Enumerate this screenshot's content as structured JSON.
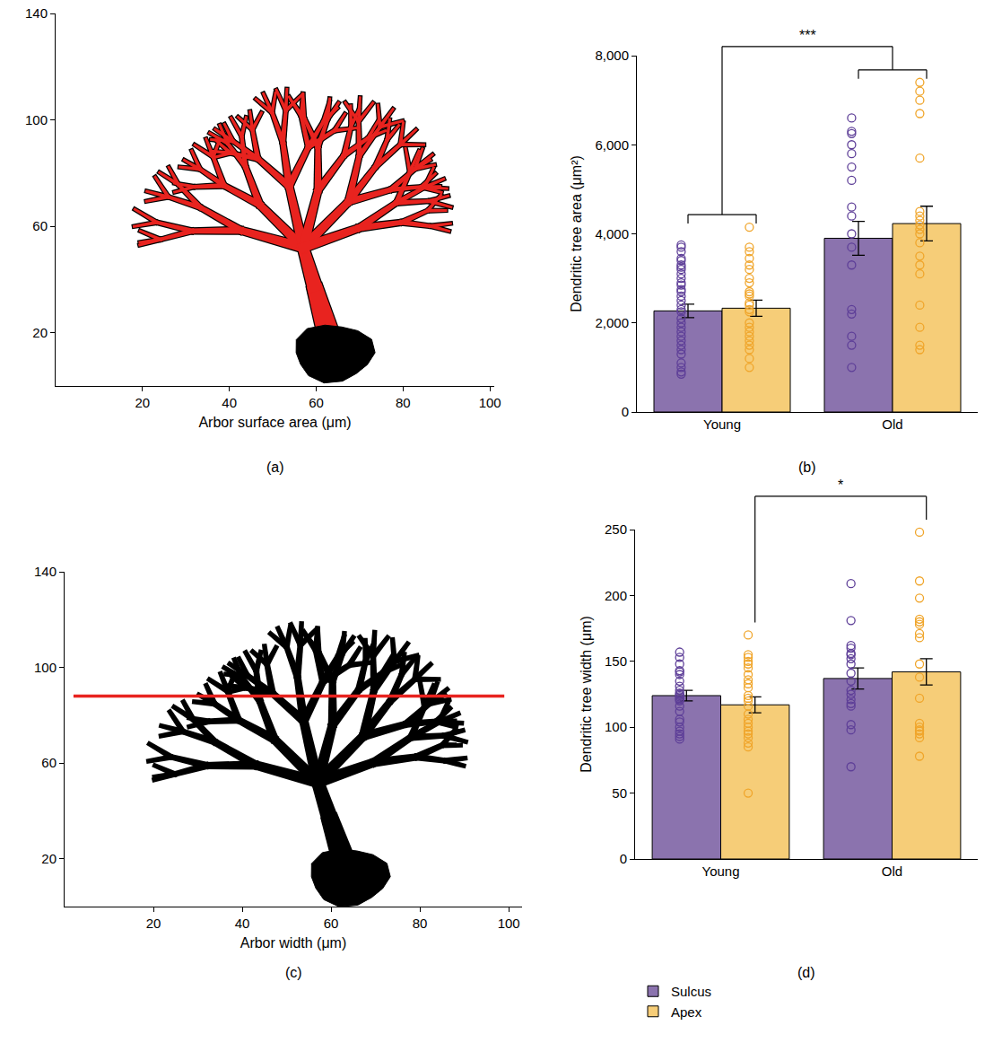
{
  "chart_data": [
    {
      "type": "illustration",
      "caption": "(a)",
      "x_label": "Arbor surface area (μm)",
      "xlim": [
        0,
        101
      ],
      "xticks": [
        20,
        40,
        60,
        80,
        100
      ],
      "ylim": [
        0,
        140
      ],
      "yticks": [
        20,
        60,
        100,
        140
      ],
      "color": "#e8231f"
    },
    {
      "type": "bar",
      "caption": "(b)",
      "y_label": "Dendritic tree area (μm²)",
      "categories": [
        "Young",
        "Old"
      ],
      "series": [
        {
          "name": "Sulcus",
          "color": "#8b73ae",
          "values": [
            2270,
            3900
          ],
          "errors": [
            150,
            380
          ],
          "points": [
            [
              3750,
              3700,
              3600,
              3450,
              3400,
              3300,
              3250,
              3200,
              3100,
              3000,
              2900,
              2850,
              2750,
              2700,
              2600,
              2500,
              2400,
              2300,
              2250,
              2100,
              2000,
              1900,
              1800,
              1700,
              1600,
              1500,
              1400,
              1300,
              1100,
              1000,
              900,
              850
            ],
            [
              6600,
              6300,
              6250,
              6000,
              5800,
              5500,
              5200,
              4600,
              4400,
              4000,
              3700,
              3300,
              2300,
              2200,
              1700,
              1500,
              1000
            ]
          ]
        },
        {
          "name": "Apex",
          "color": "#f6cd78",
          "values": [
            2330,
            4230
          ],
          "errors": [
            180,
            390
          ],
          "points": [
            [
              4150,
              3700,
              3600,
              3450,
              3300,
              3200,
              3000,
              2900,
              2700,
              2650,
              2600,
              2450,
              2400,
              2300,
              2250,
              2000,
              1900,
              1800,
              1700,
              1600,
              1500,
              1400,
              1200,
              1000
            ],
            [
              7400,
              7200,
              7000,
              6700,
              5700,
              4500,
              4400,
              4300,
              4200,
              4100,
              4000,
              3800,
              3500,
              3300,
              3100,
              2400,
              1900,
              1500,
              1400
            ]
          ]
        }
      ],
      "ylim": [
        0,
        8000
      ],
      "yticks": [
        0,
        {
          "value": 2000,
          "label": "2,000"
        },
        {
          "value": 4000,
          "label": "4,000"
        },
        {
          "value": 6000,
          "label": "6,000"
        },
        {
          "value": 8000,
          "label": "8,000"
        }
      ],
      "significance": [
        {
          "from": {
            "category": "Young"
          },
          "to": {
            "category": "Old"
          },
          "label": "***"
        }
      ]
    },
    {
      "type": "illustration",
      "caption": "(c)",
      "x_label": "Arbor width (μm)",
      "xlim": [
        0,
        103
      ],
      "xticks": [
        20,
        40,
        60,
        80,
        100
      ],
      "ylim": [
        0,
        140
      ],
      "yticks": [
        20,
        60,
        100,
        140
      ],
      "color": "#000000",
      "measure_line": {
        "y": 88,
        "x": [
          2,
          99
        ],
        "color": "#e8231f"
      }
    },
    {
      "type": "bar",
      "caption": "(d)",
      "y_label": "Dendritic tree width (μm)",
      "categories": [
        "Young",
        "Old"
      ],
      "series": [
        {
          "name": "Sulcus",
          "color": "#8b73ae",
          "values": [
            124,
            137
          ],
          "errors": [
            4,
            8
          ],
          "points": [
            [
              157,
              153,
              148,
              143,
              142,
              140,
              135,
              131,
              128,
              126,
              125,
              124,
              123,
              122,
              121,
              120,
              116,
              112,
              106,
              104,
              100,
              97,
              95,
              93,
              91
            ],
            [
              209,
              181,
              162,
              160,
              156,
              155,
              152,
              148,
              141,
              135,
              128,
              125,
              121,
              118,
              116,
              102,
              98,
              70
            ]
          ]
        },
        {
          "name": "Apex",
          "color": "#f6cd78",
          "values": [
            117,
            142
          ],
          "errors": [
            6,
            10
          ],
          "points": [
            [
              170,
              155,
              153,
              150,
              148,
              145,
              140,
              136,
              133,
              130,
              124,
              122,
              120,
              116,
              110,
              106,
              103,
              100,
              97,
              95,
              92,
              88,
              85,
              50
            ],
            [
              248,
              211,
              198,
              182,
              180,
              178,
              171,
              168,
              148,
              138,
              122,
              103,
              100,
              98,
              97,
              95,
              92,
              78
            ]
          ]
        }
      ],
      "ylim": [
        0,
        250
      ],
      "yticks": [
        0,
        50,
        100,
        150,
        200,
        250
      ],
      "legend": "below",
      "significance": [
        {
          "from": {
            "category": "Young",
            "series": "Apex"
          },
          "to": {
            "category": "Old",
            "series": "Apex"
          },
          "label": "*"
        }
      ]
    }
  ]
}
